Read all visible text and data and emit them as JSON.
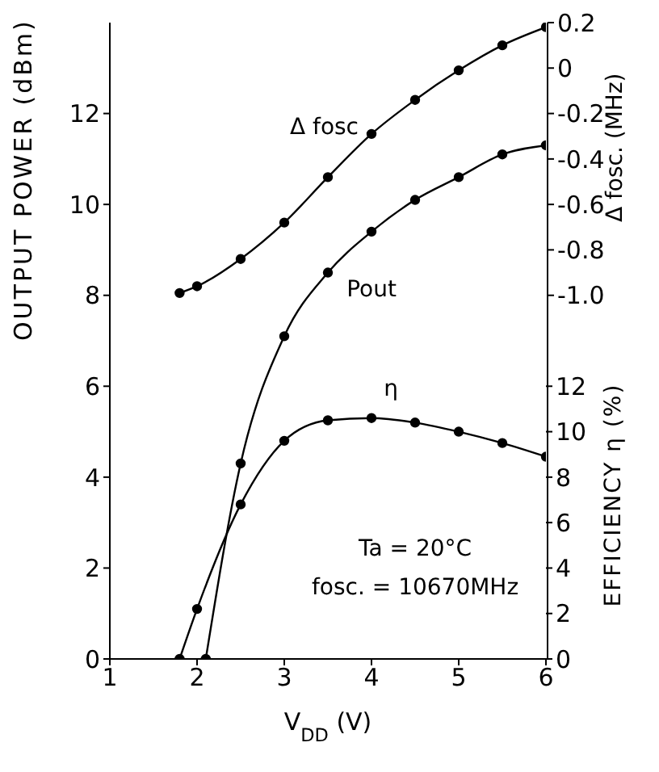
{
  "chart_data": {
    "type": "line",
    "xlabel": "V$_{DD}$  (V)",
    "ylabel": "OUTPUT  POWER  (dBm)",
    "y2label": "Δ fosc. (MHz)",
    "y3label": "EFFICIENCY η (%)",
    "xlim": [
      1,
      6
    ],
    "xticks": [
      1,
      2,
      3,
      4,
      5,
      6
    ],
    "ylim": [
      0,
      14
    ],
    "yticks": [
      0,
      2,
      4,
      6,
      8,
      10,
      12
    ],
    "y2lim": [
      -2.6,
      0.2
    ],
    "y2ticks": [
      {
        "value": -1,
        "label": "-1.0"
      },
      -0.8,
      -0.6,
      -0.4,
      -0.2,
      0,
      0.2
    ],
    "y3lim": [
      0,
      28
    ],
    "y3ticks": [
      0,
      2,
      4,
      6,
      8,
      10,
      12
    ],
    "marker": "circle",
    "line_style": "solid",
    "series": [
      {
        "name": "Δ fosc",
        "color": "#000000",
        "axis": "y2",
        "x": [
          1.8,
          2,
          2.5,
          3,
          3.5,
          4,
          4.5,
          5,
          5.5,
          6
        ],
        "values": [
          -0.99,
          -0.96,
          -0.84,
          -0.68,
          -0.48,
          -0.29,
          -0.14,
          -0.01,
          0.1,
          0.18
        ]
      },
      {
        "name": "Pout",
        "color": "#000000",
        "x": [
          2.1,
          2.5,
          3,
          3.5,
          4,
          4.5,
          5,
          5.5,
          6
        ],
        "values": [
          0,
          4.3,
          7.1,
          8.5,
          9.4,
          10.1,
          10.6,
          11.1,
          11.3
        ]
      },
      {
        "name": "η",
        "color": "#000000",
        "axis": "y3",
        "x": [
          1.8,
          2,
          2.5,
          3,
          3.5,
          4,
          4.5,
          5,
          5.5,
          6
        ],
        "values": [
          0,
          2.2,
          6.8,
          9.6,
          10.5,
          10.6,
          10.4,
          10,
          9.5,
          8.9
        ]
      }
    ],
    "annotations": [
      "Ta = 20°C",
      "fosc. = 10670MHz"
    ]
  }
}
